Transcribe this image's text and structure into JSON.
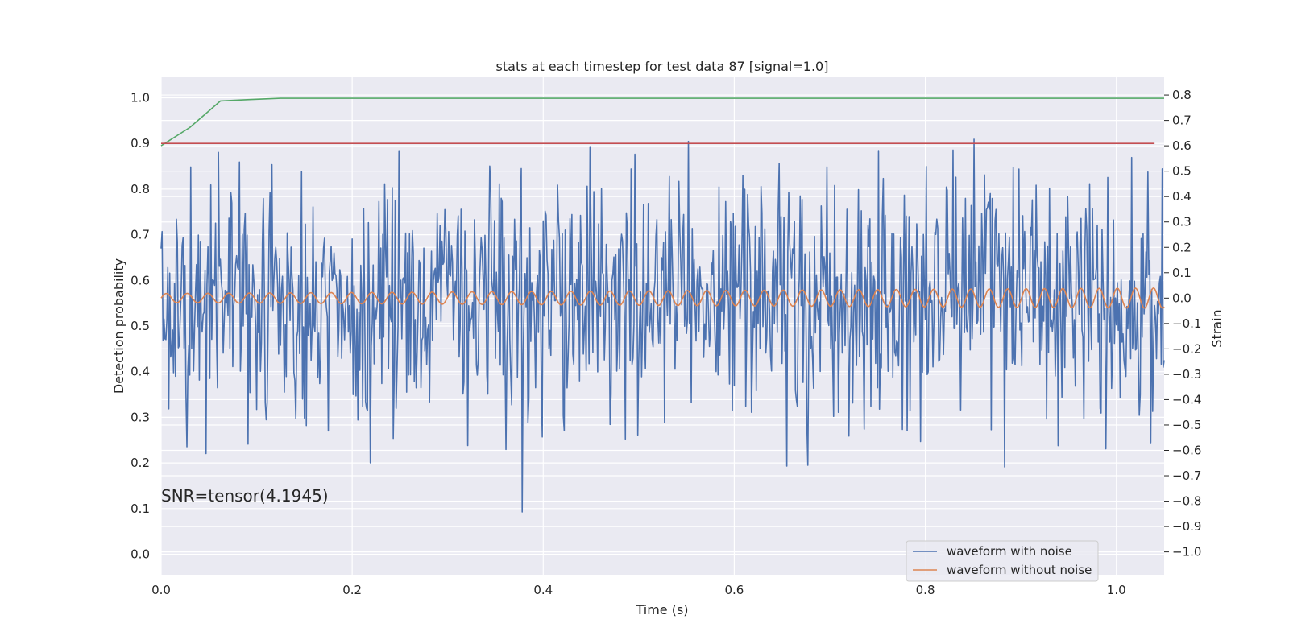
{
  "chart_data": {
    "type": "line",
    "title": "stats at each timestep for test data 87 [signal=1.0]",
    "xlabel": "Time (s)",
    "ylabel_left": "Detection probability",
    "ylabel_right": "Strain",
    "xlim": [
      0.0,
      1.05
    ],
    "ylim_left": [
      -0.045,
      1.045
    ],
    "ylim_right": [
      -1.09,
      0.87
    ],
    "x_ticks": [
      0.0,
      0.2,
      0.4,
      0.6,
      0.8,
      1.0
    ],
    "x_tick_labels": [
      "0.0",
      "0.2",
      "0.4",
      "0.6",
      "0.8",
      "1.0"
    ],
    "y_left_ticks": [
      0.0,
      0.1,
      0.2,
      0.3,
      0.4,
      0.5,
      0.6,
      0.7,
      0.8,
      0.9,
      1.0
    ],
    "y_left_tick_labels": [
      "0.0",
      "0.1",
      "0.2",
      "0.3",
      "0.4",
      "0.5",
      "0.6",
      "0.7",
      "0.8",
      "0.9",
      "1.0"
    ],
    "y_right_ticks": [
      0.8,
      0.7,
      0.6,
      0.5,
      0.4,
      0.3,
      0.2,
      0.1,
      0.0,
      -0.1,
      -0.2,
      -0.3,
      -0.4,
      -0.5,
      -0.6,
      -0.7,
      -0.8,
      -0.9,
      -1.0
    ],
    "y_right_tick_labels": [
      "0.8",
      "0.7",
      "0.6",
      "0.5",
      "0.4",
      "0.3",
      "0.2",
      "0.1",
      "0.0",
      "−0.1",
      "−0.2",
      "−0.3",
      "−0.4",
      "−0.5",
      "−0.6",
      "−0.7",
      "−0.8",
      "−0.9",
      "−1.0"
    ],
    "grid": true,
    "background": "#eaeaf2",
    "annotation": "SNR=tensor(4.1945)",
    "legend_position": "lower-right",
    "legend": [
      "waveform with noise",
      "waveform without noise"
    ],
    "series": [
      {
        "name": "waveform with noise",
        "axis": "right",
        "color": "#4c72b0",
        "x_start": 0.0,
        "x_step": 0.001,
        "generator": "noise",
        "sigma": 0.25,
        "seed": 87,
        "clip": [
          -1.0,
          0.8
        ]
      },
      {
        "name": "waveform without noise",
        "axis": "right",
        "color": "#dd8452",
        "x_start": 0.0,
        "x_step": 0.001,
        "generator": "sine",
        "amplitude_start": 0.018,
        "amplitude_end": 0.04,
        "cycles": 48,
        "offset": 0.0
      },
      {
        "axis": "left",
        "color": "#55a868",
        "x": [
          0.0,
          0.03,
          0.062,
          0.09,
          0.125,
          0.2,
          1.05
        ],
        "y": [
          0.895,
          0.935,
          0.993,
          0.996,
          0.999,
          0.999,
          0.999
        ]
      },
      {
        "axis": "left",
        "color": "#c44e52",
        "x": [
          0.0,
          1.04
        ],
        "y": [
          0.9,
          0.9
        ]
      }
    ]
  }
}
